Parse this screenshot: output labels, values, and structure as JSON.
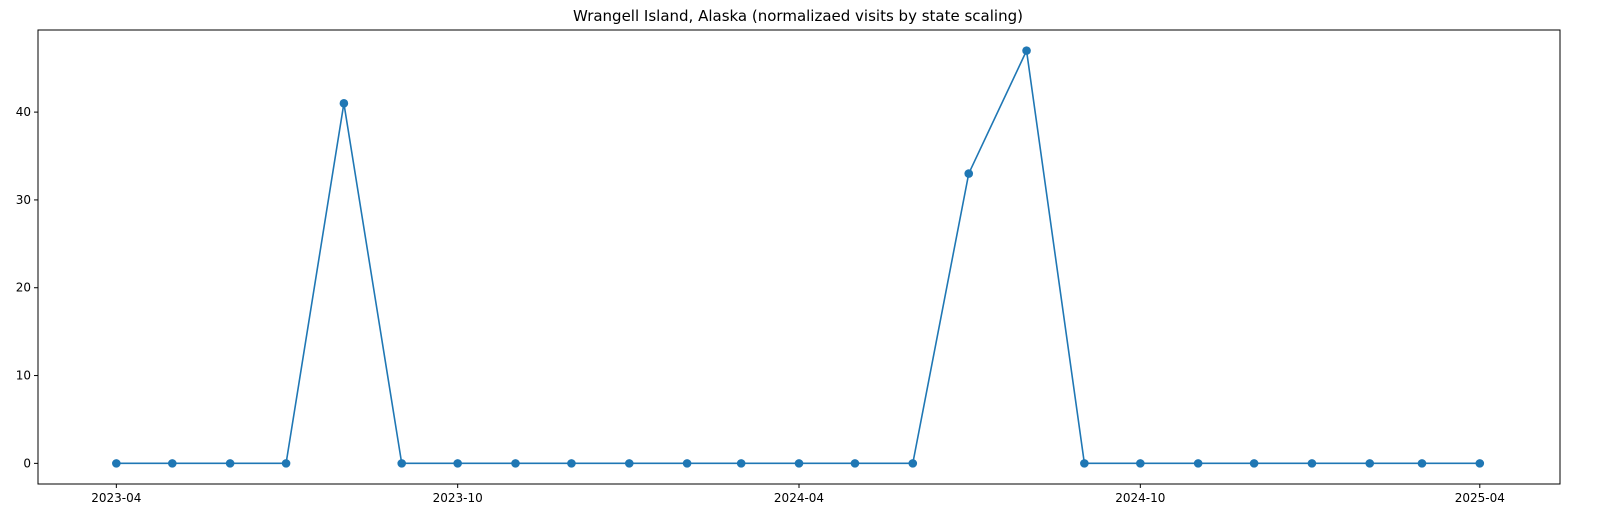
{
  "chart_data": {
    "type": "line",
    "title": "Wrangell Island, Alaska (normalizaed visits by state scaling)",
    "xlabel": "",
    "ylabel": "",
    "x": [
      "2023-04-01",
      "2023-05-01",
      "2023-06-01",
      "2023-07-01",
      "2023-08-01",
      "2023-09-01",
      "2023-10-01",
      "2023-11-01",
      "2023-12-01",
      "2024-01-01",
      "2024-02-01",
      "2024-03-01",
      "2024-04-01",
      "2024-05-01",
      "2024-06-01",
      "2024-07-01",
      "2024-08-01",
      "2024-09-01",
      "2024-10-01",
      "2024-11-01",
      "2024-12-01",
      "2025-01-01",
      "2025-02-01",
      "2025-03-01",
      "2025-04-01"
    ],
    "series": [
      {
        "name": "",
        "color": "#1f77b4",
        "values": [
          0,
          0,
          0,
          0,
          41,
          0,
          0,
          0,
          0,
          0,
          0,
          0,
          0,
          0,
          0,
          33,
          47,
          0,
          0,
          0,
          0,
          0,
          0,
          0,
          0
        ]
      }
    ],
    "x_ticks": [
      "2023-04",
      "2023-10",
      "2024-04",
      "2024-10",
      "2025-04"
    ],
    "y_ticks": [
      0,
      10,
      20,
      30,
      40
    ],
    "xlim": [
      "2023-02-18",
      "2025-05-14"
    ],
    "ylim": [
      -2.35,
      49.35
    ],
    "grid": false,
    "legend": "none"
  }
}
